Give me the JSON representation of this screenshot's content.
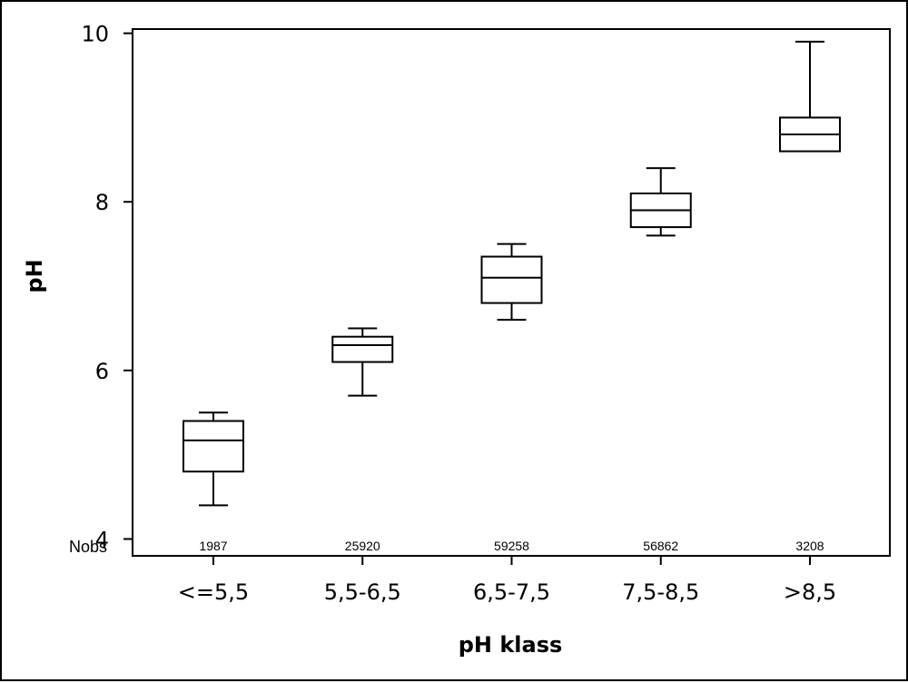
{
  "chart_data": {
    "type": "boxplot",
    "title": "",
    "xlabel": "pH klass",
    "ylabel": "pH",
    "ylim": [
      3.8,
      10.05
    ],
    "yticks": [
      4,
      6,
      8,
      10
    ],
    "grid": false,
    "nobs_label": "Nobs",
    "categories": [
      "<=5,5",
      "5,5-6,5",
      "6,5-7,5",
      "7,5-8,5",
      ">8,5"
    ],
    "boxes": [
      {
        "category": "<=5,5",
        "whisker_low": 4.4,
        "q1": 4.8,
        "median": 5.17,
        "q3": 5.4,
        "whisker_high": 5.5,
        "nobs": "1987"
      },
      {
        "category": "5,5-6,5",
        "whisker_low": 5.7,
        "q1": 6.1,
        "median": 6.3,
        "q3": 6.4,
        "whisker_high": 6.5,
        "nobs": "25920"
      },
      {
        "category": "6,5-7,5",
        "whisker_low": 6.6,
        "q1": 6.8,
        "median": 7.1,
        "q3": 7.35,
        "whisker_high": 7.5,
        "nobs": "59258"
      },
      {
        "category": "7,5-8,5",
        "whisker_low": 7.6,
        "q1": 7.7,
        "median": 7.9,
        "q3": 8.1,
        "whisker_high": 8.4,
        "nobs": "56862"
      },
      {
        "category": ">8,5",
        "whisker_low": 8.6,
        "q1": 8.6,
        "median": 8.8,
        "q3": 9.0,
        "whisker_high": 9.9,
        "nobs": "3208"
      }
    ]
  }
}
